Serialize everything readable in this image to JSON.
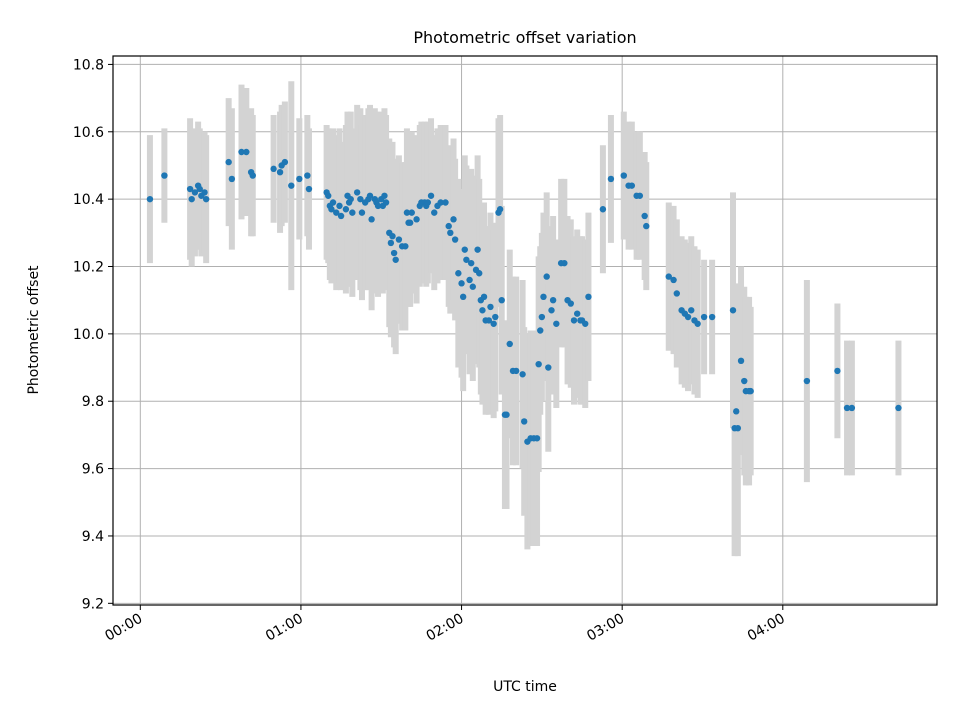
{
  "chart_data": {
    "type": "scatter",
    "title": "Photometric offset variation",
    "xlabel": "UTC time",
    "ylabel": "Photometric offset",
    "xlim": [
      -0.17,
      4.96
    ],
    "ylim": [
      9.195,
      10.825
    ],
    "grid": true,
    "legend": "none",
    "x_ticks": [
      {
        "value": 0,
        "label": "00:00"
      },
      {
        "value": 1,
        "label": "01:00"
      },
      {
        "value": 2,
        "label": "02:00"
      },
      {
        "value": 3,
        "label": "03:00"
      },
      {
        "value": 4,
        "label": "04:00"
      }
    ],
    "y_ticks": [
      {
        "value": 9.2,
        "label": "9.2"
      },
      {
        "value": 9.4,
        "label": "9.4"
      },
      {
        "value": 9.6,
        "label": "9.6"
      },
      {
        "value": 9.8,
        "label": "9.8"
      },
      {
        "value": 10.0,
        "label": "10.0"
      },
      {
        "value": 10.2,
        "label": "10.2"
      },
      {
        "value": 10.4,
        "label": "10.4"
      },
      {
        "value": 10.6,
        "label": "10.6"
      },
      {
        "value": 10.8,
        "label": "10.8"
      }
    ],
    "colors": {
      "point": "#1f77b4",
      "errorbar": "#d3d3d3",
      "grid": "#b0b0b0"
    },
    "series": [
      {
        "name": "offset",
        "points": [
          [
            0.06,
            10.4,
            0.19
          ],
          [
            0.15,
            10.47,
            0.14
          ],
          [
            0.31,
            10.43,
            0.21
          ],
          [
            0.32,
            10.4,
            0.2
          ],
          [
            0.34,
            10.42,
            0.19
          ],
          [
            0.36,
            10.44,
            0.19
          ],
          [
            0.37,
            10.43,
            0.18
          ],
          [
            0.38,
            10.41,
            0.18
          ],
          [
            0.4,
            10.42,
            0.18
          ],
          [
            0.41,
            10.4,
            0.19
          ],
          [
            0.55,
            10.51,
            0.19
          ],
          [
            0.57,
            10.46,
            0.21
          ],
          [
            0.63,
            10.54,
            0.2
          ],
          [
            0.66,
            10.54,
            0.19
          ],
          [
            0.69,
            10.48,
            0.19
          ],
          [
            0.7,
            10.47,
            0.18
          ],
          [
            0.83,
            10.49,
            0.16
          ],
          [
            0.87,
            10.48,
            0.18
          ],
          [
            0.88,
            10.5,
            0.18
          ],
          [
            0.9,
            10.51,
            0.18
          ],
          [
            0.94,
            10.44,
            0.31
          ],
          [
            0.99,
            10.46,
            0.18
          ],
          [
            1.04,
            10.47,
            0.18
          ],
          [
            1.05,
            10.43,
            0.18
          ],
          [
            1.16,
            10.42,
            0.2
          ],
          [
            1.17,
            10.41,
            0.2
          ],
          [
            1.18,
            10.38,
            0.22
          ],
          [
            1.19,
            10.37,
            0.22
          ],
          [
            1.2,
            10.39,
            0.22
          ],
          [
            1.22,
            10.36,
            0.23
          ],
          [
            1.24,
            10.38,
            0.23
          ],
          [
            1.25,
            10.35,
            0.22
          ],
          [
            1.28,
            10.37,
            0.25
          ],
          [
            1.29,
            10.41,
            0.25
          ],
          [
            1.3,
            10.39,
            0.25
          ],
          [
            1.31,
            10.4,
            0.26
          ],
          [
            1.32,
            10.36,
            0.25
          ],
          [
            1.35,
            10.42,
            0.26
          ],
          [
            1.37,
            10.4,
            0.27
          ],
          [
            1.38,
            10.36,
            0.26
          ],
          [
            1.4,
            10.39,
            0.26
          ],
          [
            1.42,
            10.4,
            0.27
          ],
          [
            1.43,
            10.41,
            0.27
          ],
          [
            1.44,
            10.34,
            0.27
          ],
          [
            1.46,
            10.4,
            0.27
          ],
          [
            1.47,
            10.39,
            0.27
          ],
          [
            1.48,
            10.38,
            0.27
          ],
          [
            1.5,
            10.4,
            0.26
          ],
          [
            1.51,
            10.38,
            0.26
          ],
          [
            1.52,
            10.41,
            0.26
          ],
          [
            1.53,
            10.39,
            0.26
          ],
          [
            1.55,
            10.3,
            0.28
          ],
          [
            1.56,
            10.27,
            0.28
          ],
          [
            1.57,
            10.29,
            0.28
          ],
          [
            1.58,
            10.24,
            0.28
          ],
          [
            1.59,
            10.22,
            0.28
          ],
          [
            1.61,
            10.28,
            0.25
          ],
          [
            1.63,
            10.26,
            0.25
          ],
          [
            1.65,
            10.26,
            0.25
          ],
          [
            1.66,
            10.36,
            0.25
          ],
          [
            1.67,
            10.33,
            0.25
          ],
          [
            1.68,
            10.33,
            0.25
          ],
          [
            1.69,
            10.36,
            0.24
          ],
          [
            1.72,
            10.34,
            0.25
          ],
          [
            1.74,
            10.38,
            0.24
          ],
          [
            1.75,
            10.39,
            0.24
          ],
          [
            1.77,
            10.39,
            0.24
          ],
          [
            1.78,
            10.38,
            0.24
          ],
          [
            1.79,
            10.39,
            0.24
          ],
          [
            1.81,
            10.41,
            0.23
          ],
          [
            1.83,
            10.36,
            0.23
          ],
          [
            1.85,
            10.38,
            0.23
          ],
          [
            1.87,
            10.39,
            0.23
          ],
          [
            1.9,
            10.39,
            0.23
          ],
          [
            1.92,
            10.32,
            0.24
          ],
          [
            1.93,
            10.3,
            0.24
          ],
          [
            1.95,
            10.34,
            0.24
          ],
          [
            1.96,
            10.28,
            0.24
          ],
          [
            1.98,
            10.18,
            0.28
          ],
          [
            2.0,
            10.15,
            0.28
          ],
          [
            2.01,
            10.11,
            0.28
          ],
          [
            2.02,
            10.25,
            0.28
          ],
          [
            2.03,
            10.22,
            0.28
          ],
          [
            2.05,
            10.16,
            0.28
          ],
          [
            2.06,
            10.21,
            0.28
          ],
          [
            2.07,
            10.14,
            0.28
          ],
          [
            2.09,
            10.19,
            0.28
          ],
          [
            2.1,
            10.25,
            0.28
          ],
          [
            2.11,
            10.18,
            0.28
          ],
          [
            2.12,
            10.1,
            0.28
          ],
          [
            2.13,
            10.07,
            0.28
          ],
          [
            2.14,
            10.11,
            0.28
          ],
          [
            2.15,
            10.04,
            0.28
          ],
          [
            2.17,
            10.04,
            0.28
          ],
          [
            2.18,
            10.08,
            0.28
          ],
          [
            2.2,
            10.03,
            0.28
          ],
          [
            2.21,
            10.05,
            0.28
          ],
          [
            2.23,
            10.36,
            0.28
          ],
          [
            2.24,
            10.37,
            0.28
          ],
          [
            2.25,
            10.1,
            0.28
          ],
          [
            2.27,
            9.76,
            0.28
          ],
          [
            2.28,
            9.76,
            0.28
          ],
          [
            2.3,
            9.97,
            0.28
          ],
          [
            2.32,
            9.89,
            0.28
          ],
          [
            2.34,
            9.89,
            0.28
          ],
          [
            2.38,
            9.88,
            0.28
          ],
          [
            2.39,
            9.74,
            0.28
          ],
          [
            2.41,
            9.68,
            0.32
          ],
          [
            2.43,
            9.69,
            0.32
          ],
          [
            2.45,
            9.69,
            0.32
          ],
          [
            2.47,
            9.69,
            0.32
          ],
          [
            2.48,
            9.91,
            0.32
          ],
          [
            2.49,
            10.01,
            0.25
          ],
          [
            2.5,
            10.05,
            0.25
          ],
          [
            2.51,
            10.11,
            0.25
          ],
          [
            2.53,
            10.17,
            0.25
          ],
          [
            2.54,
            9.9,
            0.25
          ],
          [
            2.56,
            10.07,
            0.25
          ],
          [
            2.57,
            10.1,
            0.25
          ],
          [
            2.59,
            10.03,
            0.25
          ],
          [
            2.62,
            10.21,
            0.25
          ],
          [
            2.64,
            10.21,
            0.25
          ],
          [
            2.66,
            10.1,
            0.25
          ],
          [
            2.68,
            10.09,
            0.25
          ],
          [
            2.7,
            10.04,
            0.25
          ],
          [
            2.72,
            10.06,
            0.25
          ],
          [
            2.74,
            10.04,
            0.25
          ],
          [
            2.75,
            10.04,
            0.25
          ],
          [
            2.77,
            10.03,
            0.25
          ],
          [
            2.79,
            10.11,
            0.25
          ],
          [
            2.88,
            10.37,
            0.19
          ],
          [
            2.93,
            10.46,
            0.19
          ],
          [
            3.01,
            10.47,
            0.19
          ],
          [
            3.04,
            10.44,
            0.19
          ],
          [
            3.06,
            10.44,
            0.19
          ],
          [
            3.09,
            10.41,
            0.19
          ],
          [
            3.11,
            10.41,
            0.19
          ],
          [
            3.14,
            10.35,
            0.19
          ],
          [
            3.15,
            10.32,
            0.19
          ],
          [
            3.29,
            10.17,
            0.22
          ],
          [
            3.32,
            10.16,
            0.22
          ],
          [
            3.34,
            10.12,
            0.22
          ],
          [
            3.37,
            10.07,
            0.22
          ],
          [
            3.39,
            10.06,
            0.22
          ],
          [
            3.41,
            10.05,
            0.22
          ],
          [
            3.43,
            10.07,
            0.22
          ],
          [
            3.45,
            10.04,
            0.22
          ],
          [
            3.47,
            10.03,
            0.22
          ],
          [
            3.51,
            10.05,
            0.17
          ],
          [
            3.56,
            10.05,
            0.17
          ],
          [
            3.69,
            10.07,
            0.35
          ],
          [
            3.7,
            9.72,
            0.38
          ],
          [
            3.71,
            9.77,
            0.38
          ],
          [
            3.72,
            9.72,
            0.38
          ],
          [
            3.74,
            9.92,
            0.28
          ],
          [
            3.76,
            9.86,
            0.28
          ],
          [
            3.77,
            9.83,
            0.28
          ],
          [
            3.79,
            9.83,
            0.28
          ],
          [
            3.8,
            9.83,
            0.25
          ],
          [
            4.15,
            9.86,
            0.3
          ],
          [
            4.34,
            9.89,
            0.2
          ],
          [
            4.4,
            9.78,
            0.2
          ],
          [
            4.43,
            9.78,
            0.2
          ],
          [
            4.72,
            9.78,
            0.2
          ]
        ]
      }
    ]
  }
}
